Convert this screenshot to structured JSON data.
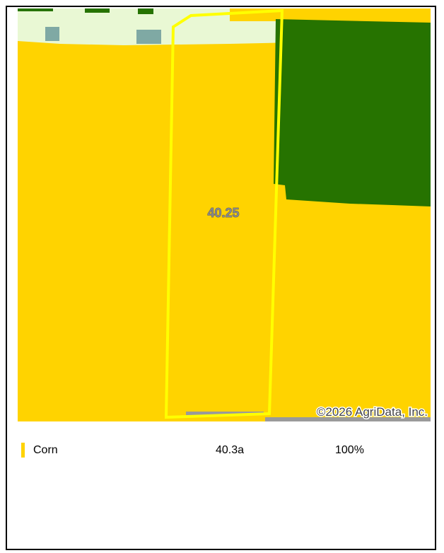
{
  "map": {
    "field_label": "40.25",
    "attribution": "©2026 AgriData, Inc."
  },
  "legend": {
    "rows": [
      {
        "name": "Corn",
        "acres": "40.3a",
        "percent": "100%"
      }
    ]
  }
}
